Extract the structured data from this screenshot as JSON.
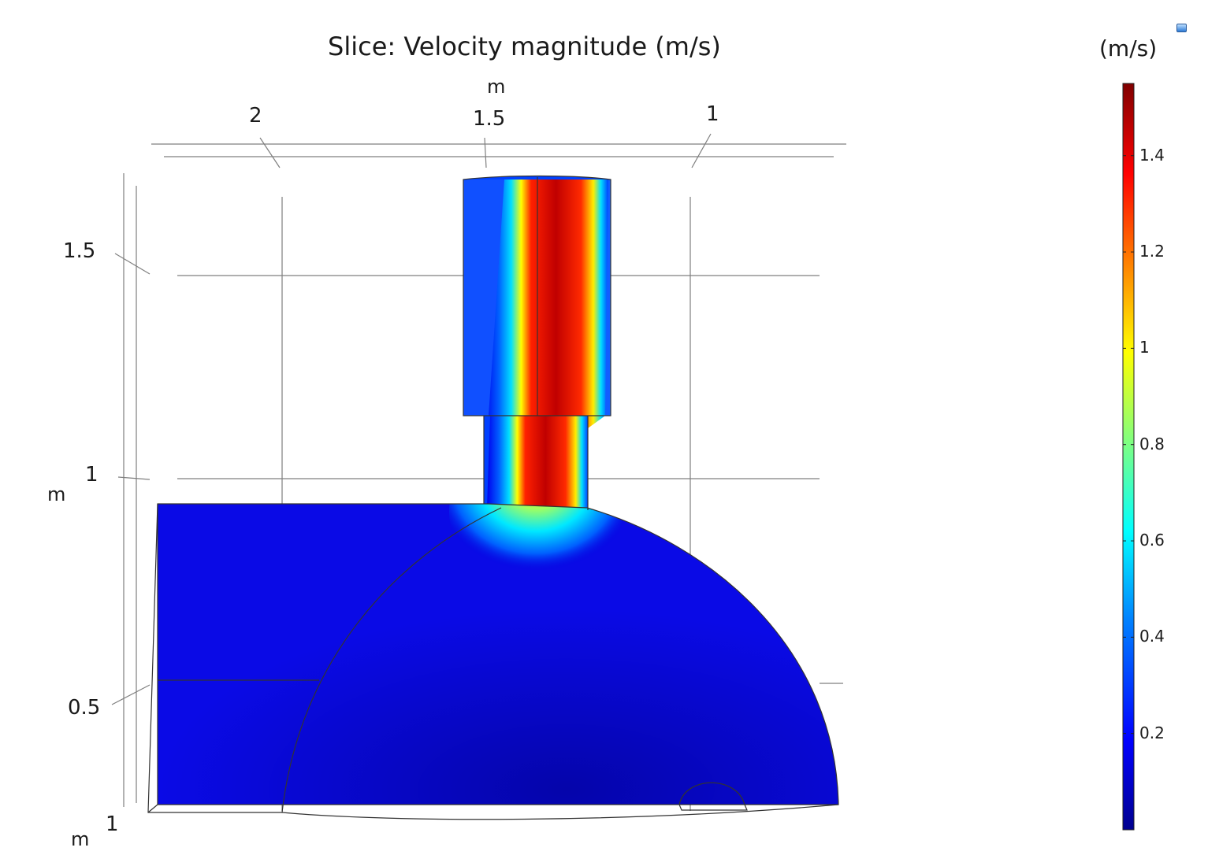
{
  "plot": {
    "title": "Slice: Velocity magnitude (m/s)"
  },
  "axes": {
    "x": {
      "unit": "m",
      "ticks": [
        "2",
        "1.5",
        "1"
      ]
    },
    "y": {
      "unit": "m",
      "ticks": [
        "1.5",
        "1",
        "0.5"
      ]
    },
    "z": {
      "unit": "m",
      "ticks": [
        "1"
      ]
    }
  },
  "colorbar": {
    "unit": "(m/s)",
    "min": 0,
    "max": 1.55,
    "ticks": [
      "1.4",
      "1.2",
      "1",
      "0.8",
      "0.6",
      "0.4",
      "0.2"
    ],
    "colormap": "rainbow",
    "colors": [
      "#00008f",
      "#0000ff",
      "#0080ff",
      "#00ffff",
      "#80ff80",
      "#ffff00",
      "#ff8000",
      "#ff0000",
      "#800000"
    ]
  },
  "field": {
    "quantity": "Velocity magnitude",
    "background_level": 0.12,
    "jet_core_level": 1.45,
    "jet_edge_level": 1.15
  },
  "toolbar": {
    "icon": "view-cube-icon"
  }
}
